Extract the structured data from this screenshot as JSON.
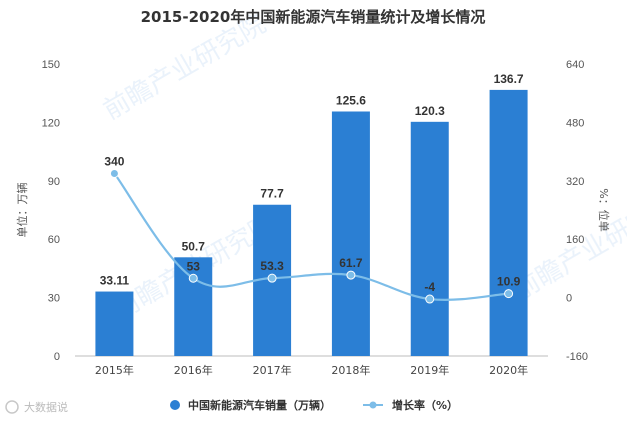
{
  "chart_data": {
    "type": "bar",
    "title": "2015-2020年中国新能源汽车销量统计及增长情况",
    "categories": [
      "2015年",
      "2016年",
      "2017年",
      "2018年",
      "2019年",
      "2020年"
    ],
    "series": [
      {
        "name": "中国新能源汽车销量（万辆）",
        "type": "bar",
        "axis": "left",
        "color": "#2b7fd3",
        "values": [
          33.11,
          50.7,
          77.7,
          125.6,
          120.3,
          136.7
        ],
        "labels": [
          "33.11",
          "50.7",
          "77.7",
          "125.6",
          "120.3",
          "136.7"
        ]
      },
      {
        "name": "增长率（%）",
        "type": "line",
        "axis": "right",
        "color": "#7dbde8",
        "values": [
          340,
          53,
          53.3,
          61.7,
          -4,
          10.9
        ],
        "labels": [
          "340",
          "53",
          "53.3",
          "61.7",
          "-4",
          "10.9"
        ]
      }
    ],
    "ylabel": "单位：万辆",
    "y2label": "%：位单",
    "ylim": [
      0,
      150
    ],
    "yticks": [
      "0",
      "30",
      "60",
      "90",
      "120",
      "150"
    ],
    "y2lim": [
      -160,
      640
    ],
    "y2ticks": [
      "-160",
      "0",
      "160",
      "320",
      "480",
      "640"
    ],
    "grid": false,
    "legend_position": "bottom"
  },
  "watermark": "前瞻产业研究院",
  "footer": {
    "source": "大数据说"
  }
}
